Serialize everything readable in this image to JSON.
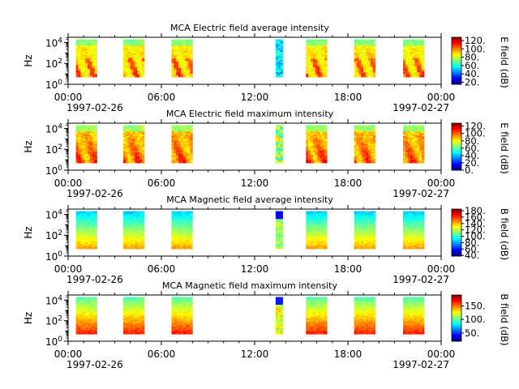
{
  "figure": {
    "date_start": "1997-02-26",
    "date_end": "1997-02-27"
  },
  "chart_data": [
    {
      "type": "heatmap",
      "title": "MCA  Electric field average intensity",
      "ylabel": "Hz",
      "colorbar_label": "E field (dB)",
      "colorbar_ticks": [
        "120.",
        "100.",
        "80.",
        "60.",
        "40.",
        "20."
      ],
      "colorbar_range": [
        15,
        128
      ],
      "x_tick_labels": [
        "00:00",
        "06:00",
        "12:00",
        "18:00",
        "00:00"
      ],
      "x_date_labels": [
        "1997-02-26",
        "1997-02-27"
      ],
      "x_range_hours": [
        0,
        24
      ],
      "ylim_log10": [
        0,
        4.5
      ],
      "y_tick_labels": [
        "10^0",
        "10^2",
        "10^4"
      ],
      "data_blocks_hours": [
        [
          0.5,
          1.85
        ],
        [
          3.55,
          4.9
        ],
        [
          6.65,
          8.0
        ],
        [
          13.35,
          13.8
        ],
        [
          15.3,
          16.65
        ],
        [
          18.4,
          19.75
        ],
        [
          21.55,
          22.9
        ]
      ],
      "freq_range_hz": [
        5,
        20000
      ],
      "style": "electric"
    },
    {
      "type": "heatmap",
      "title": "MCA  Electric field maximum intensity",
      "ylabel": "Hz",
      "colorbar_label": "E field (dB)",
      "colorbar_ticks": [
        "120.",
        "100.",
        "80.",
        "60.",
        "40.",
        "20.",
        "0."
      ],
      "colorbar_range": [
        0,
        128
      ],
      "x_tick_labels": [
        "00:00",
        "06:00",
        "12:00",
        "18:00",
        "00:00"
      ],
      "x_date_labels": [
        "1997-02-26",
        "1997-02-27"
      ],
      "x_range_hours": [
        0,
        24
      ],
      "ylim_log10": [
        0,
        4.5
      ],
      "y_tick_labels": [
        "10^0",
        "10^2",
        "10^4"
      ],
      "data_blocks_hours": [
        [
          0.5,
          1.85
        ],
        [
          3.55,
          4.9
        ],
        [
          6.65,
          8.0
        ],
        [
          13.35,
          13.8
        ],
        [
          15.3,
          16.65
        ],
        [
          18.4,
          19.75
        ],
        [
          21.55,
          22.9
        ]
      ],
      "freq_range_hz": [
        5,
        20000
      ],
      "style": "electric_max"
    },
    {
      "type": "heatmap",
      "title": "MCA  Magnetic field average intensity",
      "ylabel": "Hz",
      "colorbar_label": "B field (dB)",
      "colorbar_ticks": [
        "180.",
        "160.",
        "140.",
        "120.",
        "100.",
        "80.",
        "60.",
        "40."
      ],
      "colorbar_range": [
        38,
        185
      ],
      "x_tick_labels": [
        "00:00",
        "06:00",
        "12:00",
        "18:00",
        "00:00"
      ],
      "x_date_labels": [
        "1997-02-26",
        "1997-02-27"
      ],
      "x_range_hours": [
        0,
        24
      ],
      "ylim_log10": [
        0,
        4.5
      ],
      "y_tick_labels": [
        "10^0",
        "10^2",
        "10^4"
      ],
      "data_blocks_hours": [
        [
          0.5,
          1.85
        ],
        [
          3.55,
          4.9
        ],
        [
          6.65,
          8.0
        ],
        [
          13.35,
          13.8
        ],
        [
          15.3,
          16.65
        ],
        [
          18.4,
          19.75
        ],
        [
          21.55,
          22.9
        ]
      ],
      "freq_range_hz": [
        5,
        20000
      ],
      "style": "magnetic"
    },
    {
      "type": "heatmap",
      "title": "MCA  Magnetic field maximum intensity",
      "ylabel": "Hz",
      "colorbar_label": "B field (dB)",
      "colorbar_ticks": [
        "150.",
        "100.",
        "50."
      ],
      "colorbar_range": [
        20,
        190
      ],
      "x_tick_labels": [
        "00:00",
        "06:00",
        "12:00",
        "18:00",
        "00:00"
      ],
      "x_date_labels": [
        "1997-02-26",
        "1997-02-27"
      ],
      "x_range_hours": [
        0,
        24
      ],
      "ylim_log10": [
        0,
        4.5
      ],
      "y_tick_labels": [
        "10^0",
        "10^2",
        "10^4"
      ],
      "data_blocks_hours": [
        [
          0.5,
          1.85
        ],
        [
          3.55,
          4.9
        ],
        [
          6.65,
          8.0
        ],
        [
          13.35,
          13.8
        ],
        [
          15.3,
          16.65
        ],
        [
          18.4,
          19.75
        ],
        [
          21.55,
          22.9
        ]
      ],
      "freq_range_hz": [
        5,
        20000
      ],
      "style": "magnetic_max"
    }
  ]
}
